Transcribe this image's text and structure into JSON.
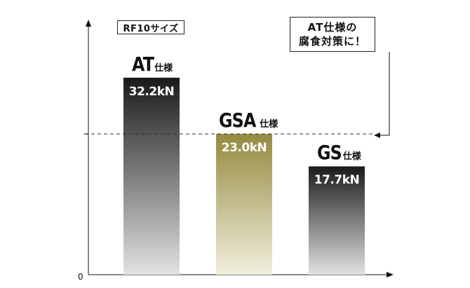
{
  "chart_data": {
    "type": "bar",
    "categories": [
      "AT仕様",
      "GSA仕様",
      "GS仕様"
    ],
    "series": [
      {
        "values": [
          32.2,
          23.0,
          17.7
        ],
        "value_labels": [
          "32.2kN",
          "23.0kN",
          "17.7kN"
        ],
        "bar_titles": [
          {
            "main": "AT",
            "sub": "仕様"
          },
          {
            "main": "GSA",
            "sub": "仕様"
          },
          {
            "main": "GS",
            "sub": "仕様"
          }
        ]
      }
    ],
    "colors": [
      [
        "#1a1a1a",
        "#e2e2e2"
      ],
      [
        "#958a3e",
        "#f1efde"
      ],
      [
        "#1a1a1a",
        "#e2e2e2"
      ]
    ],
    "reference_line": {
      "value": 23.0,
      "style": "dashed"
    },
    "ylim": [
      0,
      41
    ],
    "y_tick_label_zero": "0",
    "grid": false,
    "size_label": "RF10サイズ",
    "note": {
      "lines": [
        "AT仕様の",
        "腐食対策に！"
      ]
    }
  }
}
